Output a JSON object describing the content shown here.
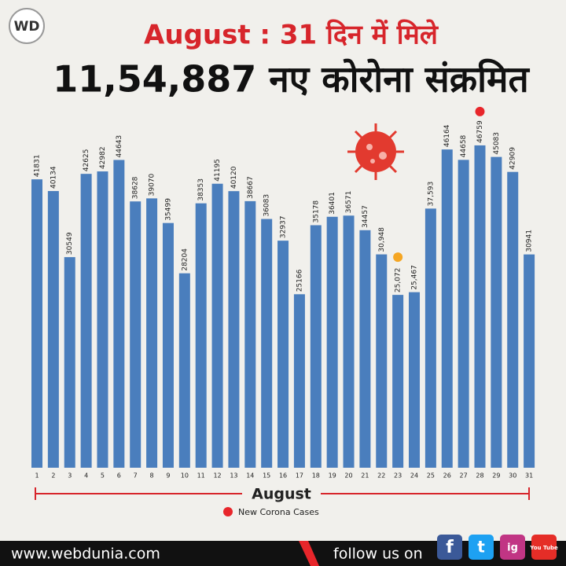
{
  "logo": "WD",
  "chart_data": {
    "type": "bar",
    "title": "August : 31 दिन में मिले",
    "subtitle": "11,54,887 नए कोरोना संक्रमित",
    "categories": [
      "1",
      "2",
      "3",
      "4",
      "5",
      "6",
      "7",
      "8",
      "9",
      "10",
      "11",
      "12",
      "13",
      "14",
      "15",
      "16",
      "17",
      "18",
      "19",
      "20",
      "21",
      "22",
      "23",
      "24",
      "25",
      "26",
      "27",
      "28",
      "29",
      "30",
      "31"
    ],
    "values": [
      41831,
      40134,
      30549,
      42625,
      42982,
      44643,
      38628,
      39070,
      35499,
      28204,
      38353,
      41195,
      40120,
      38667,
      36083,
      32937,
      25166,
      35178,
      36401,
      36571,
      34457,
      30948,
      25072,
      25467,
      37593,
      46164,
      44658,
      46759,
      45083,
      42909,
      30941
    ],
    "value_labels": [
      "41831",
      "40134",
      "30549",
      "42625",
      "42982",
      "44643",
      "38628",
      "39070",
      "35499",
      "28204",
      "38353",
      "41195",
      "40120",
      "38667",
      "36083",
      "32937",
      "25166",
      "35178",
      "36401",
      "36571",
      "34457",
      "30,948",
      "25,072",
      "25,467",
      "37,593",
      "46164",
      "44658",
      "46759",
      "45083",
      "42909",
      "30941"
    ],
    "color": "#4a7ebd",
    "x_label": "August",
    "legend": {
      "name": "New Corona Cases",
      "color": "#e8262b"
    }
  },
  "footer": {
    "website": "www.webdunia.com",
    "follow": "follow us on",
    "icons": [
      "f",
      "t",
      "ig",
      "You Tube"
    ]
  }
}
